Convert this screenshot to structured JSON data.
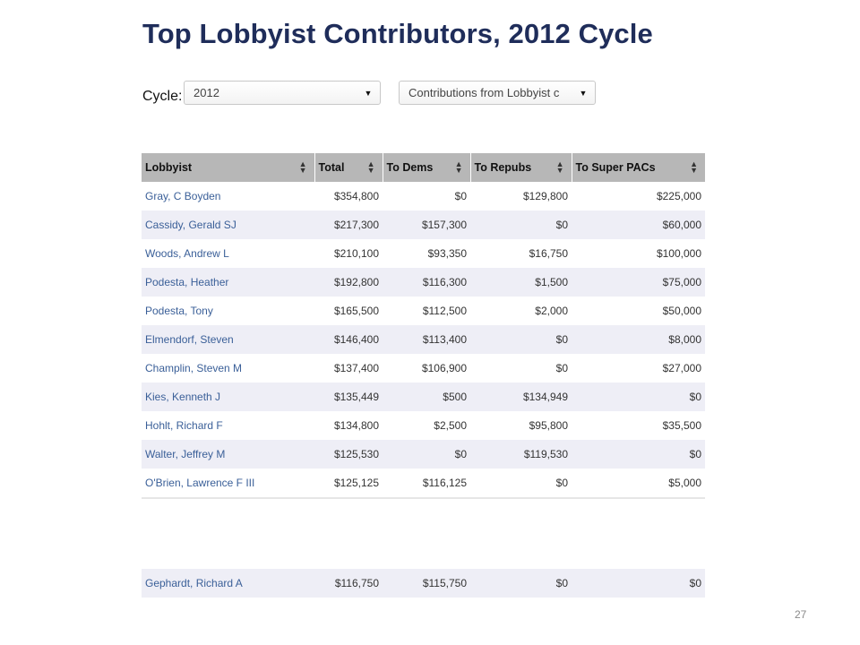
{
  "title": "Top Lobbyist Contributors, 2012 Cycle",
  "filters": {
    "cycle_label": "Cycle:",
    "cycle_value": "2012",
    "type_value": "Contributions from Lobbyist c"
  },
  "table": {
    "columns": [
      "Lobbyist",
      "Total",
      "To Dems",
      "To Repubs",
      "To Super PACs"
    ],
    "rows": [
      [
        "Gray, C Boyden",
        "$354,800",
        "$0",
        "$129,800",
        "$225,000"
      ],
      [
        "Cassidy, Gerald SJ",
        "$217,300",
        "$157,300",
        "$0",
        "$60,000"
      ],
      [
        "Woods, Andrew L",
        "$210,100",
        "$93,350",
        "$16,750",
        "$100,000"
      ],
      [
        "Podesta, Heather",
        "$192,800",
        "$116,300",
        "$1,500",
        "$75,000"
      ],
      [
        "Podesta, Tony",
        "$165,500",
        "$112,500",
        "$2,000",
        "$50,000"
      ],
      [
        "Elmendorf, Steven",
        "$146,400",
        "$113,400",
        "$0",
        "$8,000"
      ],
      [
        "Champlin, Steven M",
        "$137,400",
        "$106,900",
        "$0",
        "$27,000"
      ],
      [
        "Kies, Kenneth J",
        "$135,449",
        "$500",
        "$134,949",
        "$0"
      ],
      [
        "Hohlt, Richard F",
        "$134,800",
        "$2,500",
        "$95,800",
        "$35,500"
      ],
      [
        "Walter, Jeffrey M",
        "$125,530",
        "$0",
        "$119,530",
        "$0"
      ],
      [
        "O'Brien, Lawrence F III",
        "$125,125",
        "$116,125",
        "$0",
        "$5,000"
      ]
    ],
    "extra_row": [
      "Gephardt, Richard A",
      "$116,750",
      "$115,750",
      "$0",
      "$0"
    ]
  },
  "page_number": "27",
  "colors": {
    "title": "#1f2d5a",
    "header_bg": "#b7b7b7",
    "row_alt": "#eeeef6",
    "link": "#3a5f98"
  }
}
